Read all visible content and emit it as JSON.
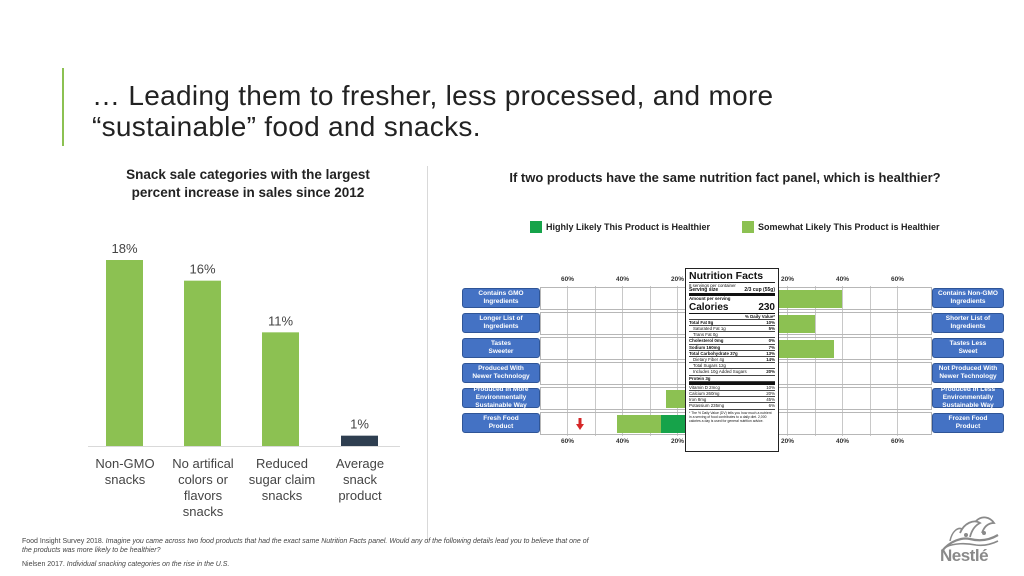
{
  "title": {
    "line1": "… Leading them to fresher, less processed, and more",
    "line2": "“sustainable” food and snacks."
  },
  "chart_data": [
    {
      "type": "bar",
      "title_line1": "Snack sale categories with the largest",
      "title_line2": "percent increase in sales since 2012",
      "categories": [
        [
          "Non-GMO",
          "snacks"
        ],
        [
          "No artifical",
          "colors or",
          "flavors",
          "snacks"
        ],
        [
          "Reduced",
          "sugar claim",
          "snacks"
        ],
        [
          "Average",
          "snack",
          "product"
        ]
      ],
      "values": [
        18,
        16,
        11,
        1
      ],
      "value_labels": [
        "18%",
        "16%",
        "11%",
        "1%"
      ],
      "bar_colors": [
        "#8cc152",
        "#8cc152",
        "#8cc152",
        "#2e3e50"
      ],
      "ylim": [
        0,
        18
      ]
    },
    {
      "type": "bar",
      "orientation": "horizontal-diverging",
      "title": "If two products have the same nutrition fact panel, which is healthier?",
      "legend": [
        {
          "label": "Highly Likely This Product is Healthier",
          "color": "#16a34a"
        },
        {
          "label": "Somewhat Likely This Product is Healthier",
          "color": "#8cc152"
        }
      ],
      "axis_ticks_left": [
        "60%",
        "40%",
        "20%"
      ],
      "axis_ticks_right": [
        "20%",
        "40%",
        "60%"
      ],
      "rows": [
        {
          "left": [
            "Contains GMO",
            "Ingredients"
          ],
          "right": [
            "Contains Non-GMO",
            "Ingredients"
          ],
          "left_highly": 14,
          "left_somewhat": 0,
          "right_highly": 5,
          "right_somewhat": 35
        },
        {
          "left": [
            "Longer List of",
            "Ingredients"
          ],
          "right": [
            "Shorter List of",
            "Ingredients"
          ],
          "left_highly": 14,
          "left_somewhat": 0,
          "right_highly": 10,
          "right_somewhat": 20
        },
        {
          "left": [
            "Tastes",
            "Sweeter"
          ],
          "right": [
            "Tastes Less",
            "Sweet"
          ],
          "left_highly": 14,
          "left_somewhat": 0,
          "right_highly": 7,
          "right_somewhat": 30
        },
        {
          "left": [
            "Produced With",
            "Newer Technology"
          ],
          "right": [
            "Not Produced With",
            "Newer Technology"
          ],
          "left_highly": 14,
          "left_somewhat": 0,
          "right_highly": 5,
          "right_somewhat": 10
        },
        {
          "left": [
            "Produced in More",
            "Environmentally",
            "Sustainable Way"
          ],
          "right": [
            "Produced in Less",
            "Environmentally",
            "Sustainable Way"
          ],
          "left_highly": 14,
          "left_somewhat": 10,
          "right_highly": 3,
          "right_somewhat": 6
        },
        {
          "left": [
            "Fresh Food",
            "Product"
          ],
          "right": [
            "Frozen Food",
            "Product"
          ],
          "left_highly": 26,
          "left_somewhat": 16,
          "right_highly": 0,
          "right_somewhat": 6
        }
      ]
    }
  ],
  "nutrition_facts": {
    "title": "Nutrition Facts",
    "servings": "8 servings per container",
    "serving_size_label": "Serving size",
    "serving_size_value": "2/3 cup (55g)",
    "amount_label": "Amount per serving",
    "calories_label": "Calories",
    "calories_value": "230",
    "dv_header": "% Daily Value*",
    "rows": [
      {
        "label": "Total Fat 8g",
        "dv": "10%",
        "bold": true,
        "indent": false
      },
      {
        "label": "Saturated Fat 1g",
        "dv": "5%",
        "bold": false,
        "indent": true
      },
      {
        "label": "Trans Fat 0g",
        "dv": "",
        "bold": false,
        "indent": true
      },
      {
        "label": "Cholesterol 0mg",
        "dv": "0%",
        "bold": true,
        "indent": false
      },
      {
        "label": "Sodium 160mg",
        "dv": "7%",
        "bold": true,
        "indent": false
      },
      {
        "label": "Total Carbohydrate 37g",
        "dv": "13%",
        "bold": true,
        "indent": false
      },
      {
        "label": "Dietary Fiber 4g",
        "dv": "14%",
        "bold": false,
        "indent": true
      },
      {
        "label": "Total Sugars 12g",
        "dv": "",
        "bold": false,
        "indent": true
      },
      {
        "label": "Includes 10g Added Sugars",
        "dv": "20%",
        "bold": false,
        "indent": true
      },
      {
        "label": "Protein 3g",
        "dv": "",
        "bold": true,
        "indent": false
      }
    ],
    "vitamins": [
      {
        "label": "Vitamin D 2mcg",
        "dv": "10%"
      },
      {
        "label": "Calcium 260mg",
        "dv": "20%"
      },
      {
        "label": "Iron 8mg",
        "dv": "45%"
      },
      {
        "label": "Potassium 235mg",
        "dv": "6%"
      }
    ],
    "footnote": "* The % Daily Value (DV) tells you how much a nutrient in a serving of food contributes to a daily diet. 2,000 calories a day is used for general nutrition advice."
  },
  "footnotes": {
    "line1_source": "Food Insight Survey 2018.",
    "line1_text": "Imagine you came across two food products that had the exact same Nutrition Facts panel. Would any of the following details lead you to believe that one of",
    "line2_text": "the products was more likely to be healthier?",
    "line3_source": "Nielsen 2017.",
    "line3_text": "Individual snacking categories on the rise in the U.S."
  },
  "logo": {
    "word": "Nestlé"
  },
  "colors": {
    "accent_green": "#8cc152",
    "dark_green": "#16a34a",
    "navy": "#2e3e50",
    "label_blue": "#4472c4"
  }
}
